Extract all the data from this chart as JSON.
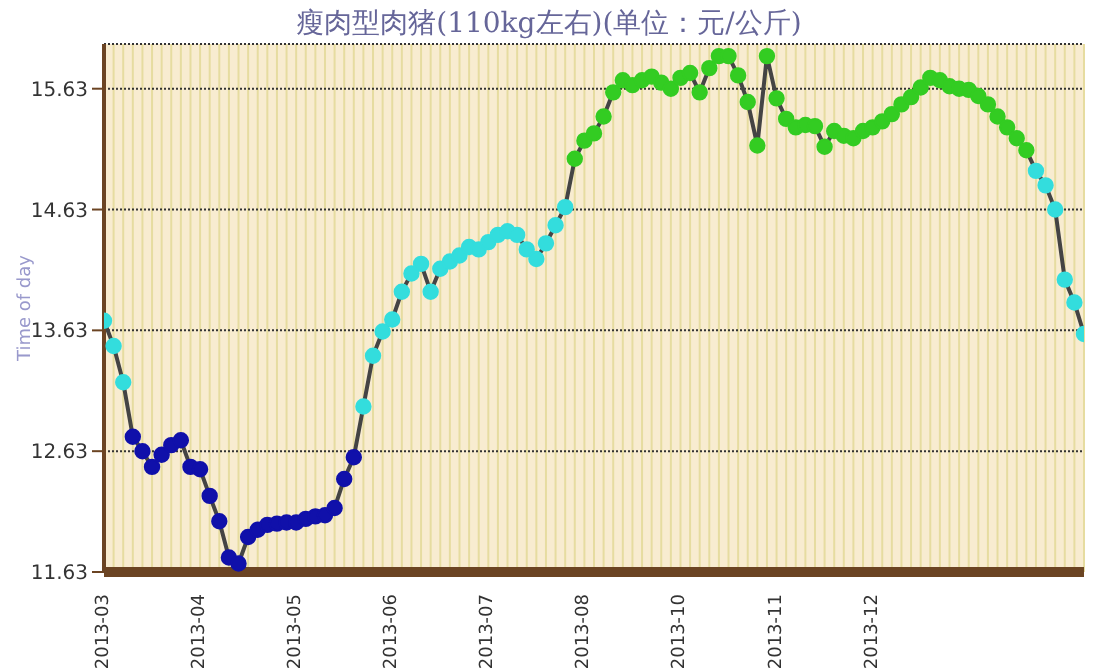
{
  "chart_data": {
    "type": "line",
    "title": "瘦肉型肉猪(110kg左右)(单位：元/公斤)",
    "ylabel": "Time of day",
    "categories": [
      "2013-03",
      null,
      null,
      null,
      null,
      null,
      null,
      null,
      null,
      null,
      "2013-04",
      null,
      null,
      null,
      null,
      null,
      null,
      null,
      null,
      null,
      "2013-05",
      null,
      null,
      null,
      null,
      null,
      null,
      null,
      null,
      null,
      "2013-06",
      null,
      null,
      null,
      null,
      null,
      null,
      null,
      null,
      null,
      "2013-07",
      null,
      null,
      null,
      null,
      null,
      null,
      null,
      null,
      null,
      "2013-08",
      null,
      null,
      null,
      null,
      null,
      null,
      null,
      null,
      null,
      "2013-10",
      null,
      null,
      null,
      null,
      null,
      null,
      null,
      null,
      null,
      "2013-11",
      null,
      null,
      null,
      null,
      null,
      null,
      null,
      null,
      null,
      "2013-12",
      null,
      null,
      null,
      null,
      null,
      null,
      null,
      null,
      null,
      null,
      null,
      null,
      null,
      null,
      null,
      null,
      null,
      null,
      null,
      null,
      null,
      null
    ],
    "series": [
      {
        "color": "#444444",
        "values": [
          13.71,
          13.5,
          13.2,
          12.75,
          12.63,
          12.5,
          12.6,
          12.68,
          12.72,
          12.5,
          12.48,
          12.26,
          12.05,
          11.75,
          11.7,
          11.92,
          11.98,
          12.02,
          12.03,
          12.04,
          12.04,
          12.07,
          12.09,
          12.1,
          12.16,
          12.4,
          12.58,
          13.0,
          13.42,
          13.62,
          13.72,
          13.95,
          14.1,
          14.18,
          13.95,
          14.14,
          14.2,
          14.25,
          14.32,
          14.3,
          14.36,
          14.42,
          14.45,
          14.42,
          14.3,
          14.22,
          14.35,
          14.5,
          14.65,
          15.05,
          15.2,
          15.26,
          15.4,
          15.6,
          15.7,
          15.66,
          15.7,
          15.73,
          15.68,
          15.63,
          15.72,
          15.76,
          15.6,
          15.8,
          15.9,
          15.9,
          15.74,
          15.52,
          15.16,
          15.9,
          15.55,
          15.38,
          15.31,
          15.33,
          15.32,
          15.15,
          15.28,
          15.24,
          15.22,
          15.28,
          15.31,
          15.36,
          15.42,
          15.5,
          15.56,
          15.64,
          15.72,
          15.7,
          15.65,
          15.63,
          15.62,
          15.57,
          15.5,
          15.4,
          15.31,
          15.22,
          15.12,
          14.95,
          14.83,
          14.63,
          14.05,
          13.86,
          13.6
        ],
        "colors": [
          "#33dddd",
          "#33dddd",
          "#33dddd",
          "#1010aa",
          "#1010aa",
          "#1010aa",
          "#1010aa",
          "#1010aa",
          "#1010aa",
          "#1010aa",
          "#1010aa",
          "#1010aa",
          "#1010aa",
          "#1010aa",
          "#1010aa",
          "#1010aa",
          "#1010aa",
          "#1010aa",
          "#1010aa",
          "#1010aa",
          "#1010aa",
          "#1010aa",
          "#1010aa",
          "#1010aa",
          "#1010aa",
          "#1010aa",
          "#1010aa",
          "#33dddd",
          "#33dddd",
          "#33dddd",
          "#33dddd",
          "#33dddd",
          "#33dddd",
          "#33dddd",
          "#33dddd",
          "#33dddd",
          "#33dddd",
          "#33dddd",
          "#33dddd",
          "#33dddd",
          "#33dddd",
          "#33dddd",
          "#33dddd",
          "#33dddd",
          "#33dddd",
          "#33dddd",
          "#33dddd",
          "#33dddd",
          "#33dddd",
          "#33cc22",
          "#33cc22",
          "#33cc22",
          "#33cc22",
          "#33cc22",
          "#33cc22",
          "#33cc22",
          "#33cc22",
          "#33cc22",
          "#33cc22",
          "#33cc22",
          "#33cc22",
          "#33cc22",
          "#33cc22",
          "#33cc22",
          "#33cc22",
          "#33cc22",
          "#33cc22",
          "#33cc22",
          "#33cc22",
          "#33cc22",
          "#33cc22",
          "#33cc22",
          "#33cc22",
          "#33cc22",
          "#33cc22",
          "#33cc22",
          "#33cc22",
          "#33cc22",
          "#33cc22",
          "#33cc22",
          "#33cc22",
          "#33cc22",
          "#33cc22",
          "#33cc22",
          "#33cc22",
          "#33cc22",
          "#33cc22",
          "#33cc22",
          "#33cc22",
          "#33cc22",
          "#33cc22",
          "#33cc22",
          "#33cc22",
          "#33cc22",
          "#33cc22",
          "#33cc22",
          "#33cc22",
          "#33dddd",
          "#33dddd",
          "#33dddd",
          "#33dddd",
          "#33dddd",
          "#33dddd"
        ]
      }
    ],
    "ylim": [
      11.63,
      16.0
    ],
    "yticks": [
      11.63,
      12.63,
      13.63,
      14.63,
      15.63
    ],
    "grid": true,
    "marker": "circle",
    "line_style": "solid",
    "legend": false
  }
}
